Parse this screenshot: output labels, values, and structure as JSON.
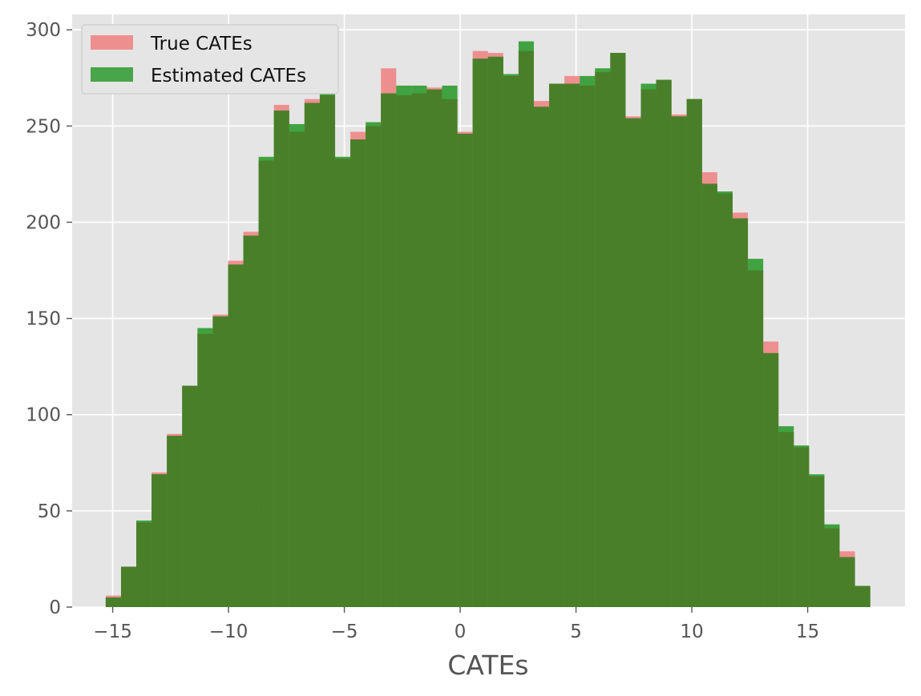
{
  "chart_data": {
    "type": "histogram",
    "bin_edges": [
      -15.3,
      -14.64,
      -13.98,
      -13.32,
      -12.66,
      -12.0,
      -11.34,
      -10.68,
      -10.02,
      -9.36,
      -8.7,
      -8.04,
      -7.38,
      -6.72,
      -6.06,
      -5.4,
      -4.74,
      -4.08,
      -3.42,
      -2.76,
      -2.1,
      -1.44,
      -0.78,
      -0.12,
      0.54,
      1.2,
      1.86,
      2.52,
      3.18,
      3.84,
      4.5,
      5.16,
      5.82,
      6.48,
      7.14,
      7.8,
      8.46,
      9.12,
      9.78,
      10.44,
      11.1,
      11.76,
      12.42,
      13.08,
      13.74,
      14.4,
      15.06,
      15.72,
      16.38,
      17.04,
      17.7
    ],
    "series": [
      {
        "name": "True CATEs",
        "color": "#f08080",
        "values": [
          6,
          21,
          44,
          70,
          90,
          115,
          142,
          152,
          180,
          195,
          232,
          261,
          247,
          264,
          266,
          233,
          247,
          250,
          280,
          266,
          267,
          270,
          264,
          247,
          289,
          288,
          276,
          289,
          263,
          272,
          276,
          271,
          278,
          288,
          255,
          269,
          274,
          256,
          264,
          226,
          215,
          205,
          175,
          138,
          91,
          83,
          68,
          41,
          29,
          11
        ]
      },
      {
        "name": "Estimated CATEs",
        "color": "#2e9a2e",
        "values": [
          5,
          21,
          45,
          69,
          89,
          115,
          145,
          151,
          178,
          193,
          234,
          258,
          251,
          262,
          272,
          234,
          243,
          252,
          267,
          271,
          271,
          269,
          271,
          246,
          285,
          286,
          277,
          294,
          260,
          272,
          272,
          276,
          280,
          288,
          254,
          272,
          274,
          255,
          264,
          220,
          216,
          202,
          181,
          132,
          94,
          84,
          69,
          43,
          26,
          11
        ]
      }
    ],
    "overlap_color": "#4a7f2a",
    "title": "",
    "xlabel": "CATEs",
    "ylabel": "",
    "xlim": [
      -16.75,
      19.2
    ],
    "ylim": [
      0,
      308
    ],
    "xticks": [
      -15,
      -10,
      -5,
      0,
      5,
      10,
      15
    ],
    "xtick_labels": [
      "−15",
      "−10",
      "−5",
      "0",
      "5",
      "10",
      "15"
    ],
    "yticks": [
      0,
      50,
      100,
      150,
      200,
      250,
      300
    ],
    "ytick_labels": [
      "0",
      "50",
      "100",
      "150",
      "200",
      "250",
      "300"
    ],
    "grid": true,
    "legend_position": "top-left",
    "style": "ggplot"
  }
}
